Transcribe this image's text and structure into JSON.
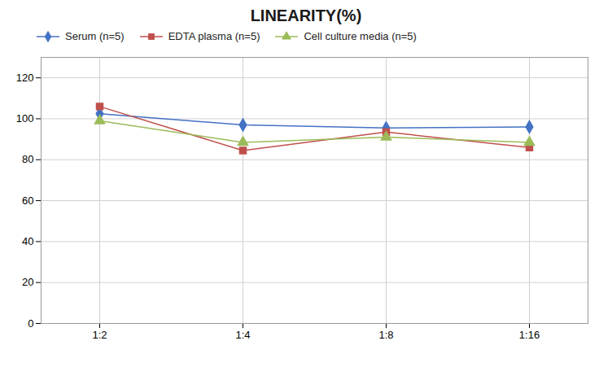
{
  "chart_data": {
    "type": "line",
    "title": "LINEARITY(%)",
    "categories": [
      "1:2",
      "1:4",
      "1:8",
      "1:16"
    ],
    "series": [
      {
        "name": "Serum (n=5)",
        "color": "#4472C4",
        "marker": "diamond",
        "values": [
          102.5,
          97.0,
          95.5,
          96.0
        ]
      },
      {
        "name": "EDTA plasma (n=5)",
        "color": "#C0504D",
        "marker": "square",
        "values": [
          106.0,
          84.5,
          93.5,
          86.0
        ]
      },
      {
        "name": "Cell culture media (n=5)",
        "color": "#9BBB59",
        "marker": "triangle",
        "values": [
          99.0,
          88.5,
          91.0,
          88.5
        ]
      }
    ],
    "ylim": [
      0,
      130
    ],
    "yticks": [
      0,
      20,
      40,
      60,
      80,
      100,
      120
    ],
    "grid": true,
    "legend": "upper left"
  }
}
